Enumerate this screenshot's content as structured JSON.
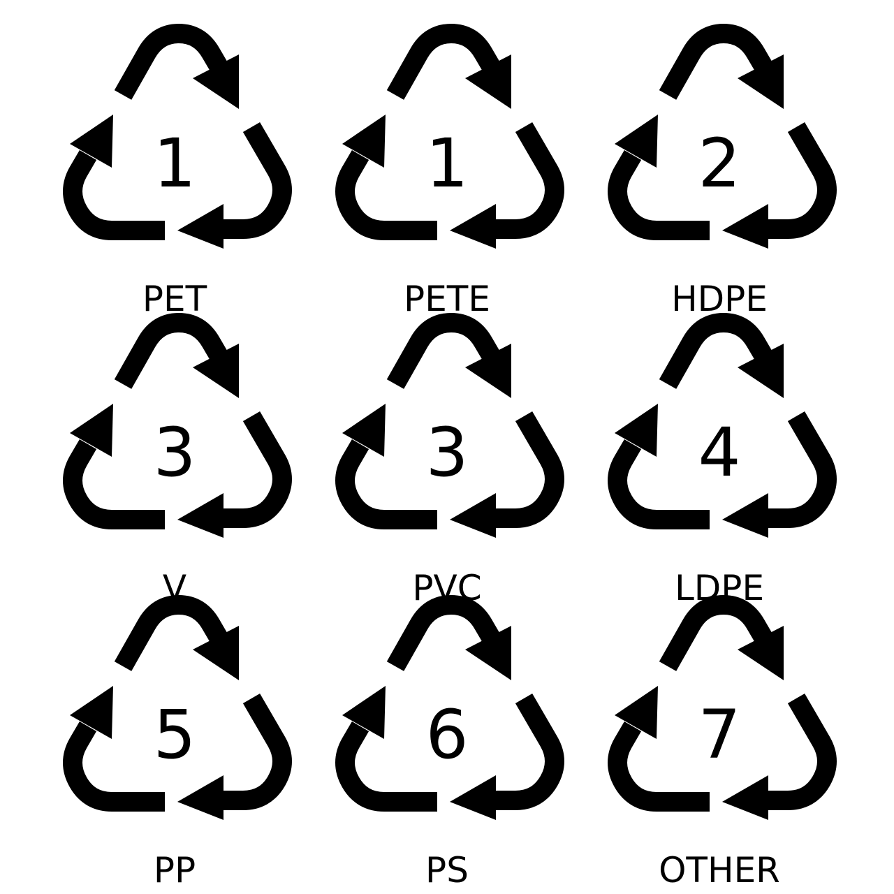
{
  "symbols": [
    {
      "number": "1",
      "label": "PET"
    },
    {
      "number": "1",
      "label": "PETE"
    },
    {
      "number": "2",
      "label": "HDPE"
    },
    {
      "number": "3",
      "label": "V"
    },
    {
      "number": "3",
      "label": "PVC"
    },
    {
      "number": "4",
      "label": "LDPE"
    },
    {
      "number": "5",
      "label": "PP"
    },
    {
      "number": "6",
      "label": "PS"
    },
    {
      "number": "7",
      "label": "OTHER"
    }
  ],
  "icon": "recycling-triangle-icon",
  "colors": {
    "foreground": "#000000",
    "background": "#ffffff"
  }
}
